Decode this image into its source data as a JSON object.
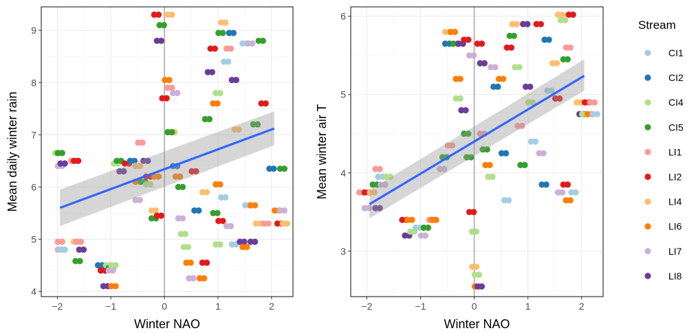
{
  "legend": {
    "title": "Stream",
    "items": [
      {
        "name": "CI1",
        "color": "#a6cee3"
      },
      {
        "name": "CI2",
        "color": "#1f78b4"
      },
      {
        "name": "CI4",
        "color": "#b2df8a"
      },
      {
        "name": "CI5",
        "color": "#33a02c"
      },
      {
        "name": "LI1",
        "color": "#fb9a99"
      },
      {
        "name": "LI2",
        "color": "#e31a1c"
      },
      {
        "name": "LI4",
        "color": "#fdbf6f"
      },
      {
        "name": "LI6",
        "color": "#ff7f00"
      },
      {
        "name": "LI7",
        "color": "#cab2d6"
      },
      {
        "name": "LI8",
        "color": "#6a3d9a"
      }
    ]
  },
  "colors": {
    "fit_line": "#3366ff",
    "ribbon": "#999999",
    "vline": "#aaaaaa"
  },
  "chart_data": [
    {
      "type": "scatter",
      "xlabel": "Winter NAO",
      "ylabel": "Mean daily winter rain",
      "xlim": [
        -2.3,
        2.4
      ],
      "ylim": [
        3.9,
        9.45
      ],
      "xticks": [
        -2,
        -1,
        0,
        1,
        2
      ],
      "yticks": [
        4,
        5,
        6,
        7,
        8,
        9
      ],
      "grid": true,
      "vline_x": 0,
      "fit": {
        "x": [
          -1.95,
          2.05
        ],
        "y": [
          5.6,
          7.12
        ],
        "se_lower": [
          5.25,
          6.8
        ],
        "se_upper": [
          5.95,
          7.45
        ]
      },
      "points": [
        {
          "x": -2.0,
          "y": 6.65,
          "s": "CI4"
        },
        {
          "x": -1.95,
          "y": 6.65,
          "s": "CI5"
        },
        {
          "x": -1.95,
          "y": 6.4,
          "s": "LI7"
        },
        {
          "x": -1.9,
          "y": 6.45,
          "s": "LI8"
        },
        {
          "x": -1.95,
          "y": 4.95,
          "s": "LI1"
        },
        {
          "x": -1.95,
          "y": 4.8,
          "s": "LI7"
        },
        {
          "x": -1.9,
          "y": 4.8,
          "s": "CI1"
        },
        {
          "x": -1.7,
          "y": 6.5,
          "s": "LI1"
        },
        {
          "x": -1.65,
          "y": 6.5,
          "s": "LI2"
        },
        {
          "x": -1.65,
          "y": 4.95,
          "s": "LI4"
        },
        {
          "x": -1.62,
          "y": 4.58,
          "s": "CI5"
        },
        {
          "x": -1.6,
          "y": 4.95,
          "s": "LI1"
        },
        {
          "x": -1.55,
          "y": 4.8,
          "s": "LI8"
        },
        {
          "x": -1.2,
          "y": 4.5,
          "s": "CI2"
        },
        {
          "x": -1.15,
          "y": 4.4,
          "s": "LI2"
        },
        {
          "x": -1.1,
          "y": 4.1,
          "s": "LI8"
        },
        {
          "x": -1.05,
          "y": 4.5,
          "s": "CI4"
        },
        {
          "x": -1.0,
          "y": 4.45,
          "s": "CI5"
        },
        {
          "x": -0.95,
          "y": 4.5,
          "s": "CI4"
        },
        {
          "x": -0.95,
          "y": 4.1,
          "s": "LI6"
        },
        {
          "x": -1.0,
          "y": 4.4,
          "s": "LI7"
        },
        {
          "x": -0.9,
          "y": 6.45,
          "s": "CI4"
        },
        {
          "x": -0.85,
          "y": 6.5,
          "s": "CI5"
        },
        {
          "x": -0.8,
          "y": 6.3,
          "s": "LI8"
        },
        {
          "x": -0.7,
          "y": 6.45,
          "s": "LI2"
        },
        {
          "x": -0.6,
          "y": 6.5,
          "s": "CI2"
        },
        {
          "x": -0.5,
          "y": 6.4,
          "s": "LI4"
        },
        {
          "x": -0.5,
          "y": 6.1,
          "s": "LI6"
        },
        {
          "x": -0.45,
          "y": 6.85,
          "s": "LI1"
        },
        {
          "x": -0.5,
          "y": 5.75,
          "s": "LI7"
        },
        {
          "x": -0.4,
          "y": 6.1,
          "s": "CI5"
        },
        {
          "x": -0.35,
          "y": 6.5,
          "s": "LI8"
        },
        {
          "x": -0.3,
          "y": 6.2,
          "s": "LI2"
        },
        {
          "x": -0.3,
          "y": 6.05,
          "s": "CI4"
        },
        {
          "x": -0.2,
          "y": 5.55,
          "s": "LI4"
        },
        {
          "x": -0.2,
          "y": 5.4,
          "s": "CI5"
        },
        {
          "x": -0.15,
          "y": 6.2,
          "s": "LI6"
        },
        {
          "x": -0.1,
          "y": 5.45,
          "s": "LI2"
        },
        {
          "x": -0.15,
          "y": 9.3,
          "s": "LI2"
        },
        {
          "x": -0.1,
          "y": 8.8,
          "s": "LI8"
        },
        {
          "x": -0.05,
          "y": 9.1,
          "s": "CI5"
        },
        {
          "x": 0.1,
          "y": 9.3,
          "s": "LI4"
        },
        {
          "x": 0.05,
          "y": 8.05,
          "s": "LI6"
        },
        {
          "x": 0.1,
          "y": 7.9,
          "s": "LI1"
        },
        {
          "x": 0.0,
          "y": 7.7,
          "s": "LI2"
        },
        {
          "x": 0.15,
          "y": 7.05,
          "s": "LI4"
        },
        {
          "x": 0.1,
          "y": 7.05,
          "s": "CI5"
        },
        {
          "x": 0.2,
          "y": 7.8,
          "s": "LI7"
        },
        {
          "x": 0.2,
          "y": 6.4,
          "s": "CI2"
        },
        {
          "x": 0.25,
          "y": 6.2,
          "s": "LI6"
        },
        {
          "x": 0.3,
          "y": 6.0,
          "s": "CI5"
        },
        {
          "x": 0.3,
          "y": 5.4,
          "s": "LI7"
        },
        {
          "x": 0.35,
          "y": 5.1,
          "s": "CI4"
        },
        {
          "x": 0.4,
          "y": 4.85,
          "s": "CI4"
        },
        {
          "x": 0.45,
          "y": 4.55,
          "s": "LI6"
        },
        {
          "x": 0.5,
          "y": 4.25,
          "s": "LI7"
        },
        {
          "x": 0.55,
          "y": 6.3,
          "s": "LI2"
        },
        {
          "x": 0.6,
          "y": 5.55,
          "s": "CI2"
        },
        {
          "x": 0.7,
          "y": 4.25,
          "s": "LI6"
        },
        {
          "x": 0.75,
          "y": 4.55,
          "s": "LI2"
        },
        {
          "x": 0.75,
          "y": 5.9,
          "s": "LI4"
        },
        {
          "x": 0.8,
          "y": 7.3,
          "s": "CI5"
        },
        {
          "x": 0.85,
          "y": 8.2,
          "s": "LI8"
        },
        {
          "x": 0.9,
          "y": 8.65,
          "s": "LI2"
        },
        {
          "x": 0.95,
          "y": 7.6,
          "s": "LI6"
        },
        {
          "x": 1.0,
          "y": 7.8,
          "s": "CI4"
        },
        {
          "x": 1.05,
          "y": 8.95,
          "s": "CI5"
        },
        {
          "x": 1.1,
          "y": 9.15,
          "s": "LI4"
        },
        {
          "x": 1.15,
          "y": 8.4,
          "s": "CI1"
        },
        {
          "x": 1.2,
          "y": 8.65,
          "s": "LI1"
        },
        {
          "x": 1.25,
          "y": 8.95,
          "s": "CI2"
        },
        {
          "x": 1.3,
          "y": 8.05,
          "s": "LI8"
        },
        {
          "x": 1.35,
          "y": 7.1,
          "s": "LI4"
        },
        {
          "x": 1.0,
          "y": 6.05,
          "s": "LI6"
        },
        {
          "x": 1.1,
          "y": 5.8,
          "s": "CI1"
        },
        {
          "x": 0.95,
          "y": 5.5,
          "s": "CI5"
        },
        {
          "x": 1.05,
          "y": 5.35,
          "s": "LI2"
        },
        {
          "x": 1.0,
          "y": 4.9,
          "s": "CI4"
        },
        {
          "x": 1.2,
          "y": 5.25,
          "s": "LI7"
        },
        {
          "x": 1.3,
          "y": 4.9,
          "s": "CI1"
        },
        {
          "x": 1.5,
          "y": 8.75,
          "s": "CI1"
        },
        {
          "x": 1.6,
          "y": 8.75,
          "s": "LI7"
        },
        {
          "x": 1.7,
          "y": 7.2,
          "s": "CI5"
        },
        {
          "x": 1.8,
          "y": 8.8,
          "s": "CI5"
        },
        {
          "x": 1.85,
          "y": 7.6,
          "s": "LI2"
        },
        {
          "x": 1.55,
          "y": 5.65,
          "s": "CI1"
        },
        {
          "x": 1.65,
          "y": 5.65,
          "s": "LI6"
        },
        {
          "x": 1.65,
          "y": 4.95,
          "s": "LI8"
        },
        {
          "x": 1.75,
          "y": 5.3,
          "s": "LI4"
        },
        {
          "x": 1.9,
          "y": 5.3,
          "s": "LI1"
        },
        {
          "x": 2.0,
          "y": 6.35,
          "s": "CI2"
        },
        {
          "x": 2.1,
          "y": 5.55,
          "s": "LI6"
        },
        {
          "x": 2.15,
          "y": 5.3,
          "s": "LI2"
        },
        {
          "x": 2.2,
          "y": 6.35,
          "s": "CI5"
        },
        {
          "x": 2.2,
          "y": 5.55,
          "s": "LI7"
        },
        {
          "x": 2.25,
          "y": 5.3,
          "s": "LI4"
        },
        {
          "x": 1.45,
          "y": 4.95,
          "s": "LI8"
        },
        {
          "x": 1.5,
          "y": 4.85,
          "s": "LI6"
        }
      ]
    },
    {
      "type": "scatter",
      "xlabel": "Winter NAO",
      "ylabel": "Mean winter air T",
      "xlim": [
        -2.3,
        2.4
      ],
      "ylim": [
        2.42,
        6.12
      ],
      "xticks": [
        -2,
        -1,
        0,
        1,
        2
      ],
      "yticks": [
        3,
        4,
        5,
        6
      ],
      "grid": true,
      "vline_x": 0,
      "fit": {
        "x": [
          -1.95,
          2.05
        ],
        "y": [
          3.6,
          5.24
        ],
        "se_lower": [
          3.42,
          5.05
        ],
        "se_upper": [
          3.78,
          5.45
        ]
      },
      "points": [
        {
          "x": -2.1,
          "y": 3.75,
          "s": "LI1"
        },
        {
          "x": -2.0,
          "y": 3.75,
          "s": "LI2"
        },
        {
          "x": -2.0,
          "y": 3.55,
          "s": "LI7"
        },
        {
          "x": -1.9,
          "y": 3.75,
          "s": "LI4"
        },
        {
          "x": -1.85,
          "y": 3.85,
          "s": "CI5"
        },
        {
          "x": -1.8,
          "y": 4.05,
          "s": "LI1"
        },
        {
          "x": -1.8,
          "y": 3.55,
          "s": "LI8"
        },
        {
          "x": -1.75,
          "y": 3.95,
          "s": "CI1"
        },
        {
          "x": -1.7,
          "y": 3.85,
          "s": "LI7"
        },
        {
          "x": -1.6,
          "y": 3.95,
          "s": "CI4"
        },
        {
          "x": -1.3,
          "y": 3.4,
          "s": "LI2"
        },
        {
          "x": -1.25,
          "y": 3.2,
          "s": "LI8"
        },
        {
          "x": -1.2,
          "y": 3.4,
          "s": "LI6"
        },
        {
          "x": -1.15,
          "y": 3.25,
          "s": "CI4"
        },
        {
          "x": -1.05,
          "y": 3.3,
          "s": "CI1"
        },
        {
          "x": -0.95,
          "y": 3.2,
          "s": "LI7"
        },
        {
          "x": -0.9,
          "y": 3.3,
          "s": "CI5"
        },
        {
          "x": -0.8,
          "y": 3.4,
          "s": "LI1"
        },
        {
          "x": -0.75,
          "y": 3.4,
          "s": "LI6"
        },
        {
          "x": -0.5,
          "y": 5.8,
          "s": "LI4"
        },
        {
          "x": -0.5,
          "y": 5.65,
          "s": "CI2"
        },
        {
          "x": -0.4,
          "y": 5.8,
          "s": "LI6"
        },
        {
          "x": -0.35,
          "y": 5.65,
          "s": "CI5"
        },
        {
          "x": -0.3,
          "y": 5.2,
          "s": "LI6"
        },
        {
          "x": -0.3,
          "y": 4.95,
          "s": "CI4"
        },
        {
          "x": -0.25,
          "y": 5.65,
          "s": "LI8"
        },
        {
          "x": -0.2,
          "y": 4.8,
          "s": "LI8"
        },
        {
          "x": -0.15,
          "y": 5.7,
          "s": "LI2"
        },
        {
          "x": -0.15,
          "y": 4.5,
          "s": "CI5"
        },
        {
          "x": -0.05,
          "y": 5.5,
          "s": "LI7"
        },
        {
          "x": -0.1,
          "y": 4.2,
          "s": "CI5"
        },
        {
          "x": -0.05,
          "y": 3.5,
          "s": "LI2"
        },
        {
          "x": 0.0,
          "y": 3.25,
          "s": "CI4"
        },
        {
          "x": 0.0,
          "y": 2.8,
          "s": "LI4"
        },
        {
          "x": 0.05,
          "y": 2.7,
          "s": "CI4"
        },
        {
          "x": 0.05,
          "y": 2.55,
          "s": "LI6"
        },
        {
          "x": 0.1,
          "y": 2.55,
          "s": "LI8"
        },
        {
          "x": 0.1,
          "y": 5.65,
          "s": "LI2"
        },
        {
          "x": 0.15,
          "y": 5.4,
          "s": "LI8"
        },
        {
          "x": 0.15,
          "y": 4.5,
          "s": "LI1"
        },
        {
          "x": 0.2,
          "y": 4.3,
          "s": "CI5"
        },
        {
          "x": 0.25,
          "y": 4.1,
          "s": "LI6"
        },
        {
          "x": 0.3,
          "y": 3.95,
          "s": "CI4"
        },
        {
          "x": 0.35,
          "y": 5.35,
          "s": "LI7"
        },
        {
          "x": 0.4,
          "y": 5.1,
          "s": "CI2"
        },
        {
          "x": 0.5,
          "y": 5.2,
          "s": "LI6"
        },
        {
          "x": 0.55,
          "y": 4.25,
          "s": "CI2"
        },
        {
          "x": 0.6,
          "y": 3.65,
          "s": "CI1"
        },
        {
          "x": 0.65,
          "y": 5.6,
          "s": "LI2"
        },
        {
          "x": 0.7,
          "y": 5.75,
          "s": "CI5"
        },
        {
          "x": 0.75,
          "y": 5.9,
          "s": "LI4"
        },
        {
          "x": 0.8,
          "y": 5.35,
          "s": "CI4"
        },
        {
          "x": 0.85,
          "y": 4.6,
          "s": "LI1"
        },
        {
          "x": 0.9,
          "y": 4.1,
          "s": "CI5"
        },
        {
          "x": 0.95,
          "y": 5.9,
          "s": "LI8"
        },
        {
          "x": 1.0,
          "y": 5.1,
          "s": "LI8"
        },
        {
          "x": 1.05,
          "y": 4.9,
          "s": "CI4"
        },
        {
          "x": 1.1,
          "y": 4.4,
          "s": "CI1"
        },
        {
          "x": 1.2,
          "y": 5.9,
          "s": "LI2"
        },
        {
          "x": 1.25,
          "y": 4.25,
          "s": "LI7"
        },
        {
          "x": 1.3,
          "y": 3.85,
          "s": "CI2"
        },
        {
          "x": 1.35,
          "y": 5.7,
          "s": "CI2"
        },
        {
          "x": 1.4,
          "y": 5.05,
          "s": "CI1"
        },
        {
          "x": 1.5,
          "y": 5.4,
          "s": "LI4"
        },
        {
          "x": 1.55,
          "y": 4.95,
          "s": "LI2"
        },
        {
          "x": 1.6,
          "y": 6.02,
          "s": "LI4"
        },
        {
          "x": 1.65,
          "y": 5.95,
          "s": "CI4"
        },
        {
          "x": 1.7,
          "y": 5.45,
          "s": "CI5"
        },
        {
          "x": 1.75,
          "y": 5.6,
          "s": "LI1"
        },
        {
          "x": 1.8,
          "y": 6.02,
          "s": "LI2"
        },
        {
          "x": 1.85,
          "y": 3.75,
          "s": "CI1"
        },
        {
          "x": 1.7,
          "y": 3.85,
          "s": "LI2"
        },
        {
          "x": 1.75,
          "y": 3.65,
          "s": "LI6"
        },
        {
          "x": 1.6,
          "y": 3.75,
          "s": "LI7"
        },
        {
          "x": 1.95,
          "y": 4.9,
          "s": "LI4"
        },
        {
          "x": 2.0,
          "y": 4.75,
          "s": "LI8"
        },
        {
          "x": 2.05,
          "y": 4.75,
          "s": "CI4"
        },
        {
          "x": 2.1,
          "y": 4.9,
          "s": "LI2"
        },
        {
          "x": 2.15,
          "y": 4.75,
          "s": "LI6"
        },
        {
          "x": 2.2,
          "y": 4.9,
          "s": "LI1"
        },
        {
          "x": 2.25,
          "y": 4.75,
          "s": "CI1"
        },
        {
          "x": -0.55,
          "y": 4.2,
          "s": "CI5"
        },
        {
          "x": -0.6,
          "y": 4.05,
          "s": "LI7"
        },
        {
          "x": -0.45,
          "y": 4.35,
          "s": "LI1"
        }
      ]
    }
  ]
}
